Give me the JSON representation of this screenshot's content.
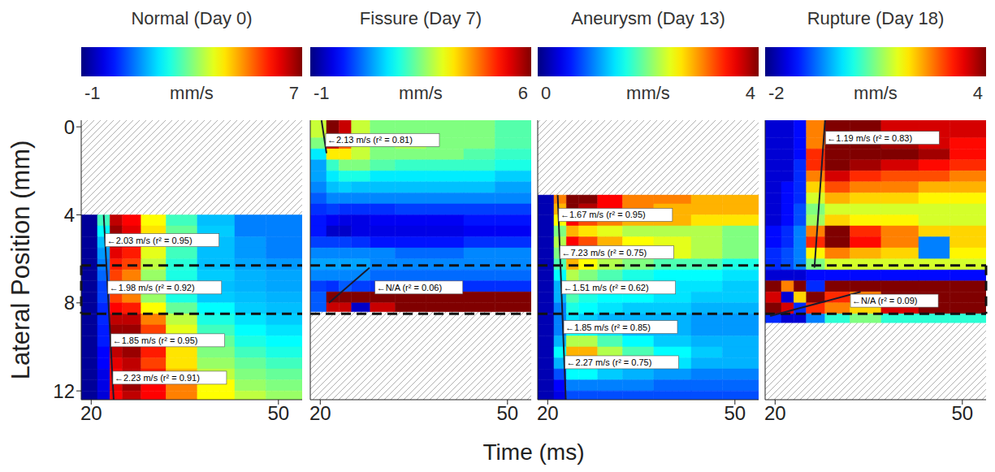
{
  "x_label": "Time (ms)",
  "highlight_band": [
    6.3,
    8.5
  ],
  "chart_data": [
    {
      "type": "heatmap",
      "title": "Normal (Day 0)",
      "y_label": "Lateral Position (mm)",
      "colorbar": {
        "range": [
          -1,
          7
        ],
        "ticks": [
          -1,
          7
        ],
        "label": "mm/s"
      },
      "xlim": [
        18.4,
        53.8
      ],
      "xticks": [
        20,
        50
      ],
      "ylim": [
        -0.3,
        12.4
      ],
      "yticks": [
        0,
        4,
        8,
        12
      ],
      "x_edges": [
        18.4,
        21,
        23,
        25,
        28,
        32,
        37,
        43,
        48,
        53.8
      ],
      "y_edges": [
        4.0,
        4.5,
        5.0,
        5.5,
        6.0,
        6.5,
        7.0,
        7.5,
        8.0,
        8.5,
        9.0,
        9.5,
        10.0,
        10.5,
        11.0,
        11.5,
        12.0,
        12.4
      ],
      "cells": [
        [
          -0.8,
          2.5,
          6.5,
          6.0,
          4.0,
          2.5,
          1.5,
          1.0,
          1.0
        ],
        [
          -0.8,
          2.0,
          6.8,
          6.2,
          4.2,
          2.8,
          1.6,
          1.0,
          1.0
        ],
        [
          -0.8,
          1.5,
          6.5,
          6.0,
          4.0,
          2.6,
          1.5,
          1.2,
          1.0
        ],
        [
          -0.8,
          1.2,
          6.2,
          5.8,
          3.8,
          2.5,
          1.5,
          1.2,
          1.0
        ],
        [
          -0.8,
          1.0,
          5.8,
          5.5,
          3.5,
          2.3,
          1.5,
          1.3,
          1.2
        ],
        [
          -0.8,
          0.8,
          5.5,
          5.0,
          3.2,
          2.2,
          1.6,
          1.4,
          1.3
        ],
        [
          -0.8,
          0.5,
          5.0,
          4.8,
          3.0,
          2.0,
          1.5,
          1.4,
          1.3
        ],
        [
          -0.8,
          0.5,
          5.5,
          5.0,
          3.2,
          2.2,
          1.6,
          1.5,
          1.4
        ],
        [
          -0.8,
          0.3,
          6.0,
          5.8,
          4.0,
          2.8,
          2.0,
          1.6,
          1.5
        ],
        [
          -0.8,
          0.3,
          6.5,
          6.5,
          5.0,
          3.5,
          2.2,
          1.8,
          1.6
        ],
        [
          -0.8,
          0.2,
          6.8,
          6.8,
          5.5,
          3.8,
          2.5,
          2.0,
          1.8
        ],
        [
          -0.8,
          0.2,
          6.8,
          6.8,
          5.8,
          4.0,
          2.8,
          2.2,
          2.0
        ],
        [
          -0.8,
          0.0,
          6.5,
          6.8,
          5.8,
          4.2,
          3.0,
          2.5,
          2.2
        ],
        [
          -0.8,
          0.0,
          6.2,
          6.5,
          5.5,
          4.2,
          3.2,
          2.8,
          2.5
        ],
        [
          -0.8,
          -0.2,
          6.0,
          6.5,
          5.8,
          4.5,
          3.5,
          3.0,
          2.8
        ],
        [
          -0.8,
          -0.2,
          6.2,
          6.8,
          6.0,
          5.0,
          4.0,
          3.2,
          3.0
        ],
        [
          -0.8,
          -0.3,
          6.0,
          6.5,
          6.0,
          5.0,
          4.0,
          3.5,
          3.2
        ]
      ],
      "fit_lines": [
        {
          "from": [
            22.0,
            4.0
          ],
          "to": [
            23.6,
            12.4
          ]
        }
      ],
      "annotations": [
        {
          "text": "←2.03 m/s (r² = 0.95)",
          "x": 22.4,
          "y": 5.15
        },
        {
          "text": "←1.98 m/s (r² = 0.92)",
          "x": 22.8,
          "y": 7.3
        },
        {
          "text": "←1.85 m/s (r² = 0.95)",
          "x": 23.3,
          "y": 9.7
        },
        {
          "text": "←2.23 m/s (r² = 0.91)",
          "x": 23.6,
          "y": 11.4
        }
      ]
    },
    {
      "type": "heatmap",
      "title": "Fissure (Day 7)",
      "tick_labels": "x",
      "colorbar": {
        "range": [
          -1,
          6
        ],
        "ticks": [
          -1,
          6
        ],
        "label": "mm/s"
      },
      "xlim": [
        18.4,
        53.8
      ],
      "xticks": [
        20,
        50
      ],
      "ylim": [
        -0.3,
        12.4
      ],
      "x_edges": [
        18.4,
        21,
        23,
        25,
        28,
        32,
        37,
        43,
        48,
        53.8
      ],
      "y_edges": [
        -0.3,
        0.5,
        1.0,
        1.5,
        2.0,
        2.5,
        3.0,
        3.5,
        4.0,
        4.5,
        5.0,
        5.5,
        6.0,
        6.5,
        7.0,
        7.5,
        8.0,
        8.4
      ],
      "cells": [
        [
          3.0,
          6.0,
          5.5,
          3.0,
          2.5,
          2.5,
          2.5,
          2.5,
          2.2
        ],
        [
          2.5,
          5.5,
          4.5,
          3.0,
          2.5,
          2.8,
          2.5,
          2.5,
          2.2
        ],
        [
          1.5,
          3.5,
          3.5,
          3.0,
          2.5,
          2.5,
          2.5,
          2.2,
          2.0
        ],
        [
          1.0,
          2.0,
          2.5,
          2.5,
          2.2,
          2.0,
          2.0,
          2.0,
          1.8
        ],
        [
          1.0,
          1.5,
          1.8,
          1.8,
          1.5,
          1.5,
          1.5,
          1.5,
          1.3
        ],
        [
          0.8,
          1.2,
          1.3,
          1.2,
          1.2,
          1.2,
          1.2,
          1.2,
          1.0
        ],
        [
          0.5,
          0.8,
          0.8,
          0.8,
          0.8,
          0.8,
          0.8,
          0.8,
          0.8
        ],
        [
          0.2,
          0.3,
          0.2,
          0.2,
          0.2,
          0.3,
          0.3,
          0.3,
          0.3
        ],
        [
          0.0,
          -0.2,
          -0.3,
          -0.3,
          -0.2,
          -0.2,
          -0.2,
          0.0,
          0.0
        ],
        [
          0.0,
          -0.5,
          -0.5,
          -0.3,
          -0.3,
          -0.3,
          -0.3,
          -0.2,
          -0.2
        ],
        [
          0.3,
          0.3,
          0.3,
          0.2,
          0.0,
          0.0,
          0.0,
          0.2,
          0.2
        ],
        [
          0.8,
          0.8,
          0.8,
          0.8,
          0.8,
          0.6,
          0.6,
          0.8,
          0.8
        ],
        [
          1.0,
          1.0,
          1.0,
          1.0,
          0.8,
          0.8,
          0.8,
          0.8,
          0.8
        ],
        [
          0.8,
          0.8,
          0.8,
          0.8,
          0.6,
          0.6,
          0.6,
          0.6,
          0.6
        ],
        [
          0.3,
          0.2,
          0.5,
          0.3,
          0.2,
          0.2,
          0.2,
          0.2,
          0.2
        ],
        [
          0.5,
          6.0,
          6.0,
          6.0,
          6.0,
          6.0,
          6.0,
          6.0,
          6.0
        ],
        [
          0.5,
          5.5,
          5.5,
          -0.5,
          5.5,
          6.0,
          6.0,
          6.0,
          6.0
        ]
      ],
      "fit_lines": [
        {
          "from": [
            20.2,
            -0.3
          ],
          "to": [
            21.0,
            1.2
          ]
        },
        {
          "from": [
            21.4,
            8.0
          ],
          "to": [
            27.9,
            6.4
          ]
        }
      ],
      "annotations": [
        {
          "text": "←2.13 m/s (r² = 0.81)",
          "x": 21.0,
          "y": 0.6
        },
        {
          "text": "←N/A (r² = 0.06)",
          "x": 28.9,
          "y": 7.3
        }
      ]
    },
    {
      "type": "heatmap",
      "title": "Aneurysm (Day 13)",
      "tick_labels": "x",
      "colorbar": {
        "range": [
          0,
          4
        ],
        "ticks": [
          0,
          4
        ],
        "label": "mm/s"
      },
      "xlim": [
        18.4,
        53.8
      ],
      "xticks": [
        20,
        50
      ],
      "ylim": [
        -0.3,
        12.4
      ],
      "x_edges": [
        18.4,
        21,
        23,
        25,
        28,
        32,
        37,
        43,
        48,
        53.8
      ],
      "y_edges": [
        3.1,
        3.5,
        4.0,
        4.5,
        5.0,
        5.5,
        6.0,
        6.5,
        7.0,
        7.5,
        8.0,
        8.5,
        9.0,
        9.5,
        10.0,
        10.5,
        11.0,
        11.5,
        12.0,
        12.4
      ],
      "cells": [
        [
          0.2,
          3.0,
          4.0,
          4.0,
          3.5,
          3.0,
          3.0,
          2.8,
          2.8
        ],
        [
          0.2,
          2.8,
          4.0,
          3.8,
          3.5,
          3.0,
          2.8,
          2.8,
          2.8
        ],
        [
          0.2,
          2.5,
          3.5,
          3.2,
          3.0,
          2.8,
          2.8,
          2.6,
          2.6
        ],
        [
          0.2,
          2.0,
          2.8,
          2.6,
          2.4,
          2.2,
          2.2,
          2.2,
          2.0
        ],
        [
          0.2,
          2.2,
          3.5,
          3.2,
          2.8,
          2.5,
          2.4,
          2.2,
          2.0
        ],
        [
          0.2,
          2.0,
          3.5,
          3.3,
          2.8,
          2.5,
          2.4,
          2.2,
          2.0
        ],
        [
          0.2,
          1.8,
          2.8,
          2.5,
          2.2,
          2.0,
          1.8,
          1.8,
          1.6
        ],
        [
          0.2,
          1.5,
          2.2,
          2.0,
          1.8,
          1.6,
          1.5,
          1.5,
          1.4
        ],
        [
          0.2,
          1.2,
          2.0,
          1.8,
          1.6,
          1.5,
          1.4,
          1.4,
          1.3
        ],
        [
          0.2,
          1.2,
          1.8,
          1.6,
          1.5,
          1.5,
          1.4,
          1.3,
          1.3
        ],
        [
          0.2,
          1.0,
          1.6,
          1.5,
          1.4,
          1.3,
          1.3,
          1.2,
          1.2
        ],
        [
          0.2,
          1.0,
          1.4,
          1.3,
          1.2,
          1.2,
          1.2,
          1.1,
          1.1
        ],
        [
          0.2,
          1.0,
          1.5,
          1.5,
          1.4,
          1.2,
          1.2,
          1.1,
          1.1
        ],
        [
          0.2,
          1.2,
          2.2,
          2.2,
          1.8,
          1.5,
          1.3,
          1.2,
          1.2
        ],
        [
          0.2,
          1.5,
          2.8,
          2.8,
          2.2,
          1.8,
          1.5,
          1.3,
          1.2
        ],
        [
          0.2,
          1.2,
          2.5,
          2.4,
          2.0,
          1.6,
          1.4,
          1.2,
          1.2
        ],
        [
          0.2,
          0.8,
          1.5,
          1.5,
          1.3,
          1.2,
          1.1,
          1.0,
          1.0
        ],
        [
          0.2,
          0.5,
          1.0,
          1.0,
          1.0,
          1.0,
          0.9,
          0.9,
          0.9
        ],
        [
          0.2,
          0.4,
          0.8,
          0.8,
          0.8,
          0.8,
          0.8,
          0.8,
          0.8
        ]
      ],
      "fit_lines": [
        {
          "from": [
            21.6,
            3.1
          ],
          "to": [
            22.9,
            12.4
          ]
        }
      ],
      "annotations": [
        {
          "text": "←1.67 m/s (r² = 0.95)",
          "x": 21.9,
          "y": 4.0
        },
        {
          "text": "←7.23 m/s (r² = 0.75)",
          "x": 22.1,
          "y": 5.7
        },
        {
          "text": "←1.51 m/s (r² = 0.62)",
          "x": 22.4,
          "y": 7.3
        },
        {
          "text": "←1.85 m/s (r² = 0.85)",
          "x": 22.7,
          "y": 9.1
        },
        {
          "text": "←2.27 m/s (r² = 0.75)",
          "x": 22.9,
          "y": 10.7
        }
      ]
    },
    {
      "type": "heatmap",
      "title": "Rupture (Day 18)",
      "tick_labels": "x",
      "colorbar": {
        "range": [
          -2,
          4
        ],
        "ticks": [
          -2,
          4
        ],
        "label": "mm/s"
      },
      "xlim": [
        18.4,
        53.8
      ],
      "xticks": [
        20,
        50
      ],
      "ylim": [
        -0.3,
        12.4
      ],
      "x_edges": [
        18.4,
        21,
        23,
        25,
        28,
        32,
        37,
        43,
        48,
        53.8
      ],
      "y_edges": [
        -0.3,
        0.5,
        1.0,
        1.5,
        2.0,
        2.5,
        3.0,
        3.5,
        4.0,
        4.5,
        5.0,
        5.5,
        6.0,
        6.5,
        7.0,
        7.5,
        8.0,
        8.5,
        8.9
      ],
      "cells": [
        [
          -1.5,
          -1.5,
          -1.2,
          2.5,
          4.0,
          4.0,
          3.5,
          3.5,
          3.5
        ],
        [
          -1.5,
          -1.5,
          -1.2,
          2.5,
          4.0,
          4.0,
          3.8,
          3.5,
          3.2
        ],
        [
          -1.5,
          -1.5,
          -1.2,
          3.0,
          4.0,
          4.0,
          4.0,
          3.8,
          3.2
        ],
        [
          -1.5,
          -1.5,
          -1.0,
          3.0,
          4.0,
          3.8,
          3.5,
          3.2,
          3.0
        ],
        [
          -1.5,
          -1.5,
          -1.0,
          2.5,
          3.5,
          3.0,
          2.8,
          2.8,
          2.5
        ],
        [
          -1.5,
          -1.2,
          -1.0,
          2.0,
          2.8,
          2.5,
          2.5,
          2.2,
          2.2
        ],
        [
          -1.5,
          -1.2,
          -1.0,
          1.5,
          2.2,
          2.0,
          2.0,
          1.8,
          1.8
        ],
        [
          -1.5,
          -1.2,
          -0.8,
          1.0,
          1.5,
          1.5,
          1.5,
          1.5,
          1.5
        ],
        [
          -1.5,
          -1.2,
          -0.8,
          1.2,
          2.0,
          1.8,
          1.8,
          1.5,
          1.5
        ],
        [
          -1.2,
          -1.0,
          -0.5,
          2.5,
          4.0,
          3.0,
          2.5,
          2.0,
          2.0
        ],
        [
          -1.2,
          -1.0,
          -0.5,
          3.0,
          4.0,
          3.2,
          2.5,
          -0.5,
          2.0
        ],
        [
          -1.0,
          -0.8,
          -0.5,
          1.8,
          2.5,
          2.2,
          2.0,
          -0.5,
          1.8
        ],
        [
          -1.0,
          -0.8,
          -0.5,
          1.0,
          1.5,
          1.5,
          1.5,
          1.5,
          1.5
        ],
        [
          -1.5,
          -1.5,
          -1.5,
          -1.2,
          -1.2,
          -1.2,
          -1.2,
          -1.2,
          -1.2
        ],
        [
          4.0,
          2.5,
          4.0,
          -1.0,
          4.0,
          4.0,
          4.0,
          4.0,
          4.0
        ],
        [
          3.5,
          -1.5,
          2.0,
          4.0,
          3.0,
          2.5,
          4.0,
          4.0,
          4.0
        ],
        [
          4.0,
          3.5,
          -1.0,
          3.0,
          2.5,
          2.0,
          3.5,
          4.0,
          4.0
        ],
        [
          -1.0,
          -1.5,
          -1.5,
          -0.5,
          0.5,
          1.0,
          0.5,
          0.5,
          0.5
        ]
      ],
      "fit_lines": [
        {
          "from": [
            28.0,
            -0.3
          ],
          "to": [
            26.3,
            6.4
          ]
        },
        {
          "from": [
            19.2,
            8.6
          ],
          "to": [
            33.7,
            7.5
          ]
        }
      ],
      "annotations": [
        {
          "text": "←1.19 m/s (r² = 0.83)",
          "x": 28.2,
          "y": 0.5
        },
        {
          "text": "←N/A (r² = 0.09)",
          "x": 32.2,
          "y": 7.9
        }
      ]
    }
  ]
}
